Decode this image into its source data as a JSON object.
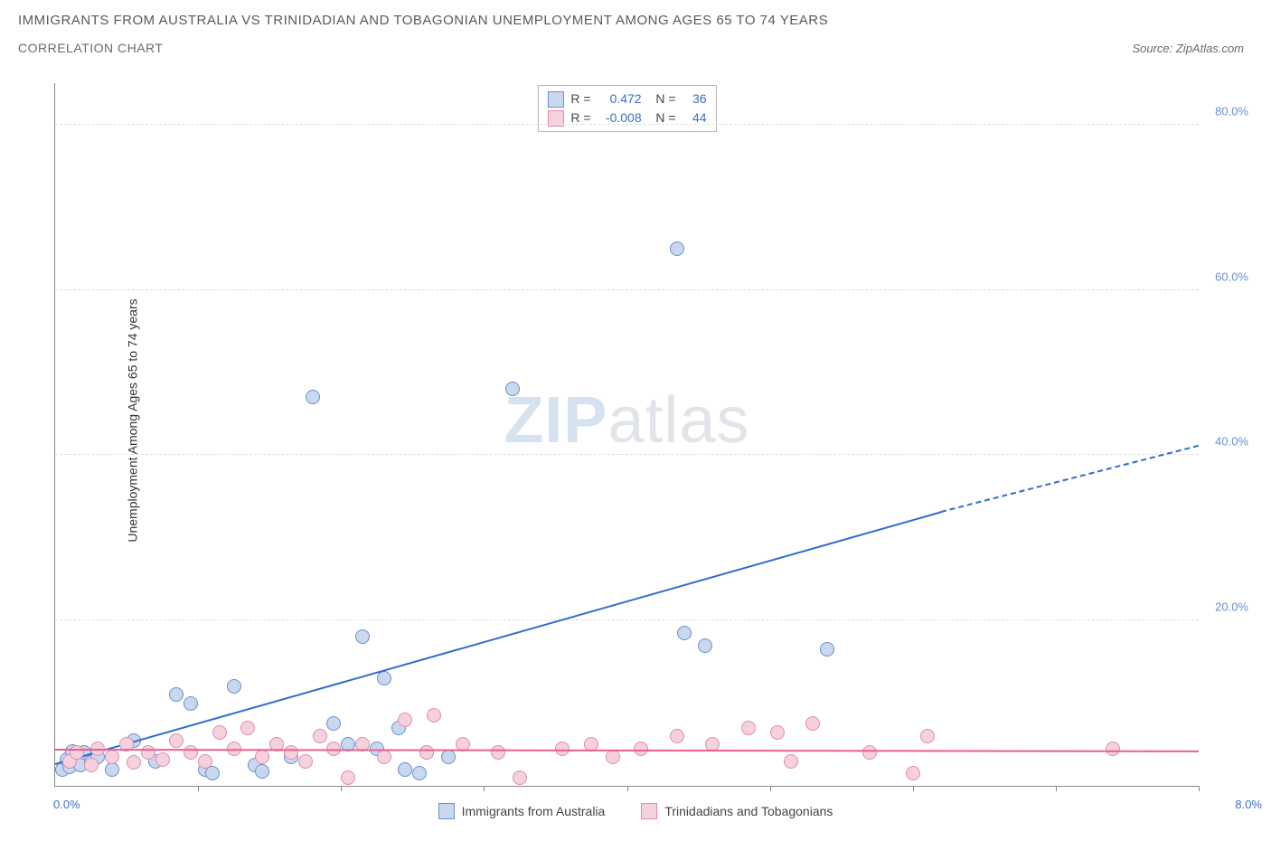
{
  "title": "IMMIGRANTS FROM AUSTRALIA VS TRINIDADIAN AND TOBAGONIAN UNEMPLOYMENT AMONG AGES 65 TO 74 YEARS",
  "subtitle": "CORRELATION CHART",
  "source_label": "Source: ZipAtlas.com",
  "ylabel": "Unemployment Among Ages 65 to 74 years",
  "watermark_a": "ZIP",
  "watermark_b": "atlas",
  "chart": {
    "type": "scatter",
    "background_color": "#ffffff",
    "grid_color": "#e0e0e0",
    "axis_color": "#888888",
    "xlim": [
      0,
      8
    ],
    "ylim": [
      0,
      85
    ],
    "x_origin_label": "0.0%",
    "x_max_label": "8.0%",
    "xtick_positions": [
      1,
      2,
      3,
      4,
      5,
      6,
      7,
      8
    ],
    "yticks": [
      {
        "v": 20,
        "label": "20.0%",
        "color": "#6a8fcf"
      },
      {
        "v": 40,
        "label": "40.0%",
        "color": "#6a8fcf"
      },
      {
        "v": 60,
        "label": "60.0%",
        "color": "#6a8fcf"
      },
      {
        "v": 80,
        "label": "80.0%",
        "color": "#6a8fcf"
      }
    ],
    "marker_radius": 8,
    "marker_border_width": 1.5,
    "series": [
      {
        "name": "Immigrants from Australia",
        "fill": "#c8d8ef",
        "stroke": "#6a8fcf",
        "r": "0.472",
        "n": "36",
        "trend": {
          "x0": 0,
          "y0": 2.5,
          "x1": 6.2,
          "y1": 33,
          "xd": 8.0,
          "yd": 41,
          "color": "#2f6bd0"
        },
        "points": [
          [
            0.05,
            2.0
          ],
          [
            0.08,
            3.2
          ],
          [
            0.1,
            2.3
          ],
          [
            0.12,
            4.2
          ],
          [
            0.15,
            3.0
          ],
          [
            0.18,
            2.5
          ],
          [
            0.2,
            4.0
          ],
          [
            0.25,
            2.8
          ],
          [
            0.3,
            3.5
          ],
          [
            0.4,
            2.0
          ],
          [
            0.55,
            5.5
          ],
          [
            0.7,
            3.0
          ],
          [
            0.85,
            11.0
          ],
          [
            0.95,
            10.0
          ],
          [
            1.05,
            2.0
          ],
          [
            1.1,
            1.5
          ],
          [
            1.25,
            12.0
          ],
          [
            1.4,
            2.5
          ],
          [
            1.45,
            1.8
          ],
          [
            1.65,
            3.5
          ],
          [
            1.8,
            47.0
          ],
          [
            1.95,
            7.5
          ],
          [
            2.05,
            5.0
          ],
          [
            2.15,
            18.0
          ],
          [
            2.25,
            4.5
          ],
          [
            2.3,
            13.0
          ],
          [
            2.4,
            7.0
          ],
          [
            2.45,
            2.0
          ],
          [
            2.55,
            1.5
          ],
          [
            2.6,
            4.0
          ],
          [
            2.75,
            3.5
          ],
          [
            3.2,
            48.0
          ],
          [
            4.35,
            65.0
          ],
          [
            4.4,
            18.5
          ],
          [
            4.55,
            17.0
          ],
          [
            5.4,
            16.5
          ]
        ]
      },
      {
        "name": "Trinidadians and Tobagonians",
        "fill": "#f5d1dd",
        "stroke": "#e38bab",
        "r": "-0.008",
        "n": "44",
        "trend": {
          "x0": 0,
          "y0": 4.3,
          "x1": 8.0,
          "y1": 4.1,
          "color": "#e75e8f"
        },
        "points": [
          [
            0.1,
            3.0
          ],
          [
            0.15,
            4.0
          ],
          [
            0.25,
            2.5
          ],
          [
            0.3,
            4.5
          ],
          [
            0.4,
            3.5
          ],
          [
            0.5,
            5.0
          ],
          [
            0.55,
            2.8
          ],
          [
            0.65,
            4.0
          ],
          [
            0.75,
            3.2
          ],
          [
            0.85,
            5.5
          ],
          [
            0.95,
            4.0
          ],
          [
            1.05,
            3.0
          ],
          [
            1.15,
            6.5
          ],
          [
            1.25,
            4.5
          ],
          [
            1.35,
            7.0
          ],
          [
            1.45,
            3.5
          ],
          [
            1.55,
            5.0
          ],
          [
            1.65,
            4.0
          ],
          [
            1.75,
            3.0
          ],
          [
            1.85,
            6.0
          ],
          [
            1.95,
            4.5
          ],
          [
            2.05,
            1.0
          ],
          [
            2.15,
            5.0
          ],
          [
            2.3,
            3.5
          ],
          [
            2.45,
            8.0
          ],
          [
            2.6,
            4.0
          ],
          [
            2.65,
            8.5
          ],
          [
            2.85,
            5.0
          ],
          [
            3.1,
            4.0
          ],
          [
            3.25,
            1.0
          ],
          [
            3.55,
            4.5
          ],
          [
            3.75,
            5.0
          ],
          [
            3.9,
            3.5
          ],
          [
            4.1,
            4.5
          ],
          [
            4.35,
            6.0
          ],
          [
            4.6,
            5.0
          ],
          [
            4.85,
            7.0
          ],
          [
            5.05,
            6.5
          ],
          [
            5.15,
            3.0
          ],
          [
            5.3,
            7.5
          ],
          [
            5.7,
            4.0
          ],
          [
            6.0,
            1.5
          ],
          [
            6.1,
            6.0
          ],
          [
            7.4,
            4.5
          ]
        ]
      }
    ]
  },
  "bottom_legend": [
    {
      "label": "Immigrants from Australia",
      "fill": "#c8d8ef",
      "stroke": "#6a8fcf"
    },
    {
      "label": "Trinidadians and Tobagonians",
      "fill": "#f5d1dd",
      "stroke": "#e38bab"
    }
  ]
}
